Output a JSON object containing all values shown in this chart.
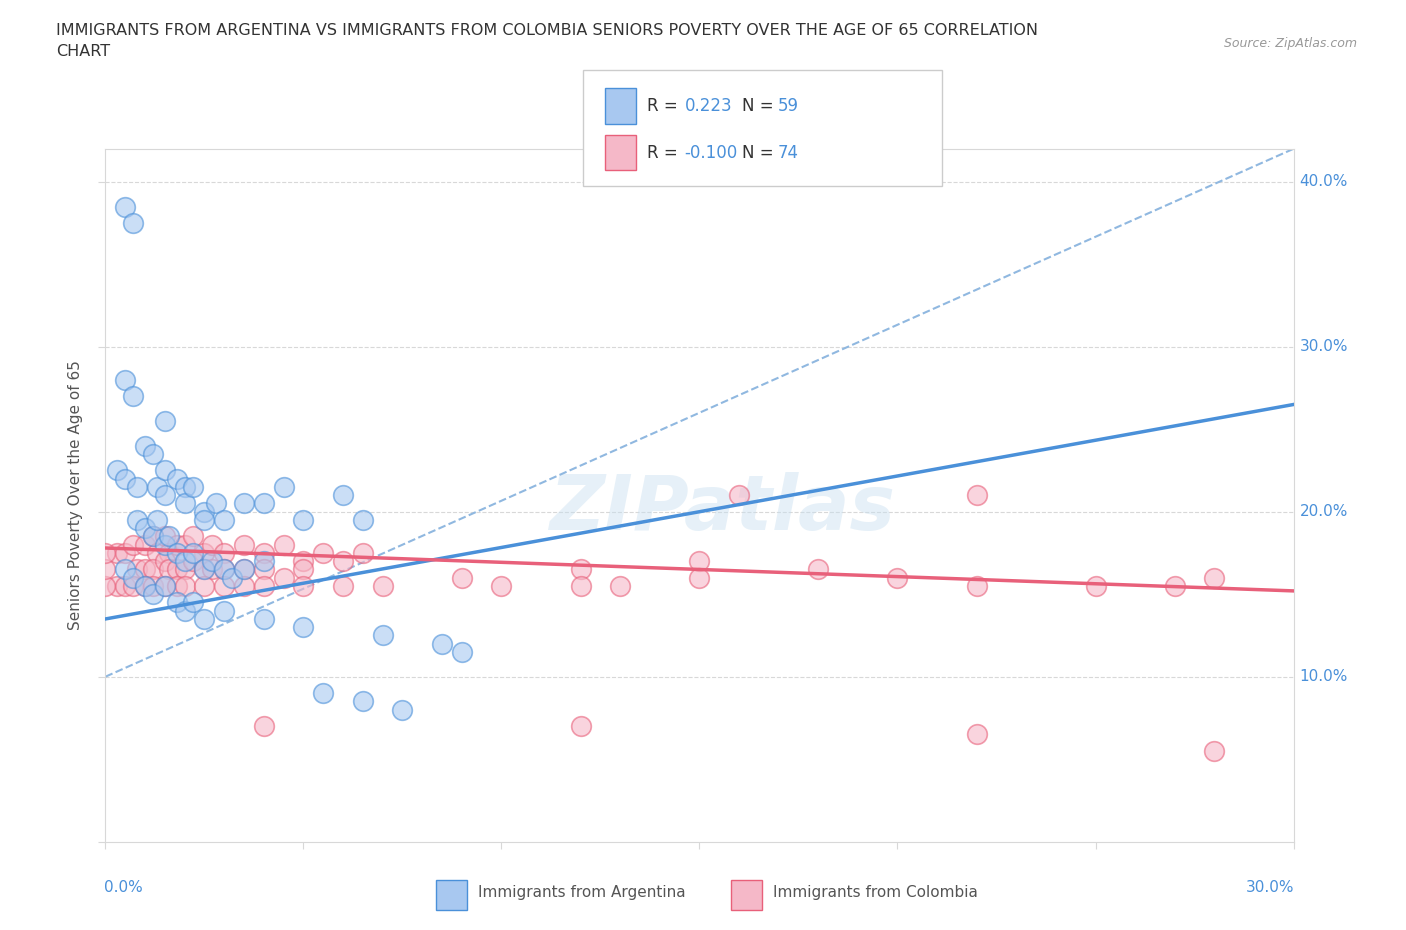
{
  "title_line1": "IMMIGRANTS FROM ARGENTINA VS IMMIGRANTS FROM COLOMBIA SENIORS POVERTY OVER THE AGE OF 65 CORRELATION",
  "title_line2": "CHART",
  "source": "Source: ZipAtlas.com",
  "ylabel": "Seniors Poverty Over the Age of 65",
  "xlim": [
    0.0,
    0.3
  ],
  "ylim": [
    0.0,
    0.42
  ],
  "argentina_fill": "#a8c8f0",
  "argentina_edge": "#4a90d9",
  "colombia_fill": "#f5b8c8",
  "colombia_edge": "#e8607a",
  "dash_color": "#90b8e0",
  "grid_color": "#d8d8d8",
  "watermark": "ZIPatlas",
  "arg_trend": [
    0.0,
    0.135,
    0.3,
    0.265
  ],
  "col_trend": [
    0.0,
    0.178,
    0.3,
    0.152
  ],
  "dash_trend": [
    0.0,
    0.1,
    0.3,
    0.42
  ],
  "argentina_scatter": [
    [
      0.005,
      0.385
    ],
    [
      0.007,
      0.375
    ],
    [
      0.005,
      0.28
    ],
    [
      0.007,
      0.27
    ],
    [
      0.015,
      0.255
    ],
    [
      0.003,
      0.225
    ],
    [
      0.005,
      0.22
    ],
    [
      0.008,
      0.215
    ],
    [
      0.01,
      0.24
    ],
    [
      0.012,
      0.235
    ],
    [
      0.013,
      0.215
    ],
    [
      0.015,
      0.21
    ],
    [
      0.015,
      0.225
    ],
    [
      0.018,
      0.22
    ],
    [
      0.02,
      0.215
    ],
    [
      0.02,
      0.205
    ],
    [
      0.022,
      0.215
    ],
    [
      0.025,
      0.2
    ],
    [
      0.025,
      0.195
    ],
    [
      0.028,
      0.205
    ],
    [
      0.03,
      0.195
    ],
    [
      0.035,
      0.205
    ],
    [
      0.04,
      0.205
    ],
    [
      0.045,
      0.215
    ],
    [
      0.05,
      0.195
    ],
    [
      0.06,
      0.21
    ],
    [
      0.065,
      0.195
    ],
    [
      0.008,
      0.195
    ],
    [
      0.01,
      0.19
    ],
    [
      0.012,
      0.185
    ],
    [
      0.013,
      0.195
    ],
    [
      0.015,
      0.18
    ],
    [
      0.016,
      0.185
    ],
    [
      0.018,
      0.175
    ],
    [
      0.02,
      0.17
    ],
    [
      0.022,
      0.175
    ],
    [
      0.025,
      0.165
    ],
    [
      0.027,
      0.17
    ],
    [
      0.03,
      0.165
    ],
    [
      0.032,
      0.16
    ],
    [
      0.035,
      0.165
    ],
    [
      0.04,
      0.17
    ],
    [
      0.005,
      0.165
    ],
    [
      0.007,
      0.16
    ],
    [
      0.01,
      0.155
    ],
    [
      0.012,
      0.15
    ],
    [
      0.015,
      0.155
    ],
    [
      0.018,
      0.145
    ],
    [
      0.02,
      0.14
    ],
    [
      0.022,
      0.145
    ],
    [
      0.025,
      0.135
    ],
    [
      0.03,
      0.14
    ],
    [
      0.04,
      0.135
    ],
    [
      0.05,
      0.13
    ],
    [
      0.07,
      0.125
    ],
    [
      0.085,
      0.12
    ],
    [
      0.09,
      0.115
    ],
    [
      0.055,
      0.09
    ],
    [
      0.065,
      0.085
    ],
    [
      0.075,
      0.08
    ]
  ],
  "colombia_scatter": [
    [
      0.003,
      0.175
    ],
    [
      0.005,
      0.175
    ],
    [
      0.007,
      0.18
    ],
    [
      0.01,
      0.18
    ],
    [
      0.012,
      0.185
    ],
    [
      0.013,
      0.175
    ],
    [
      0.015,
      0.185
    ],
    [
      0.016,
      0.175
    ],
    [
      0.018,
      0.18
    ],
    [
      0.02,
      0.18
    ],
    [
      0.022,
      0.185
    ],
    [
      0.025,
      0.175
    ],
    [
      0.027,
      0.18
    ],
    [
      0.03,
      0.175
    ],
    [
      0.035,
      0.18
    ],
    [
      0.04,
      0.175
    ],
    [
      0.045,
      0.18
    ],
    [
      0.05,
      0.17
    ],
    [
      0.055,
      0.175
    ],
    [
      0.06,
      0.17
    ],
    [
      0.065,
      0.175
    ],
    [
      0.008,
      0.165
    ],
    [
      0.01,
      0.165
    ],
    [
      0.012,
      0.165
    ],
    [
      0.015,
      0.17
    ],
    [
      0.016,
      0.165
    ],
    [
      0.018,
      0.165
    ],
    [
      0.02,
      0.165
    ],
    [
      0.022,
      0.17
    ],
    [
      0.025,
      0.165
    ],
    [
      0.027,
      0.165
    ],
    [
      0.03,
      0.165
    ],
    [
      0.035,
      0.165
    ],
    [
      0.04,
      0.165
    ],
    [
      0.045,
      0.16
    ],
    [
      0.05,
      0.165
    ],
    [
      0.003,
      0.155
    ],
    [
      0.005,
      0.155
    ],
    [
      0.007,
      0.155
    ],
    [
      0.01,
      0.155
    ],
    [
      0.012,
      0.155
    ],
    [
      0.015,
      0.155
    ],
    [
      0.018,
      0.155
    ],
    [
      0.02,
      0.155
    ],
    [
      0.025,
      0.155
    ],
    [
      0.03,
      0.155
    ],
    [
      0.035,
      0.155
    ],
    [
      0.04,
      0.155
    ],
    [
      0.05,
      0.155
    ],
    [
      0.06,
      0.155
    ],
    [
      0.07,
      0.155
    ],
    [
      0.0,
      0.155
    ],
    [
      0.0,
      0.165
    ],
    [
      0.0,
      0.175
    ],
    [
      0.16,
      0.21
    ],
    [
      0.22,
      0.21
    ],
    [
      0.12,
      0.165
    ],
    [
      0.15,
      0.17
    ],
    [
      0.09,
      0.16
    ],
    [
      0.1,
      0.155
    ],
    [
      0.13,
      0.155
    ],
    [
      0.04,
      0.07
    ],
    [
      0.12,
      0.07
    ],
    [
      0.22,
      0.065
    ],
    [
      0.28,
      0.055
    ],
    [
      0.12,
      0.155
    ],
    [
      0.15,
      0.16
    ],
    [
      0.18,
      0.165
    ],
    [
      0.2,
      0.16
    ],
    [
      0.22,
      0.155
    ],
    [
      0.25,
      0.155
    ],
    [
      0.27,
      0.155
    ],
    [
      0.28,
      0.16
    ]
  ]
}
